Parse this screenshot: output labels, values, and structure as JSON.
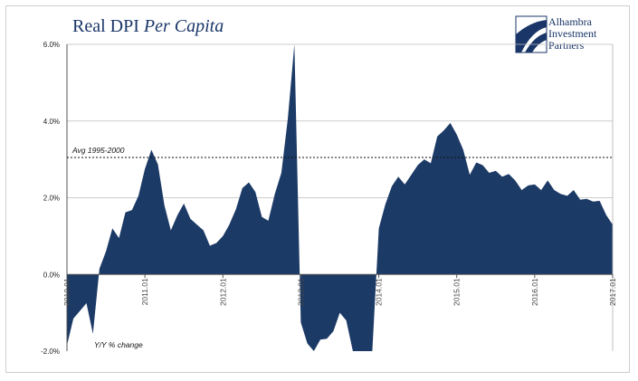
{
  "header": {
    "title_plain": "Real DPI ",
    "title_italic": "Per Capita"
  },
  "logo": {
    "line1": "Alhambra",
    "line2": "Investment",
    "line3": "Partners",
    "color": "#1a3668"
  },
  "chart_data": {
    "type": "area",
    "title": "Real DPI Per Capita",
    "ylabel": "Y/Y % change",
    "ylim": [
      -2,
      6
    ],
    "xlim": [
      2010.0,
      2017.0
    ],
    "y_tick_labels": [
      "-2.0%",
      "0.0%",
      "2.0%",
      "4.0%",
      "6.0%"
    ],
    "y_ticks": [
      -2,
      0,
      2,
      4,
      6
    ],
    "x_tick_labels": [
      "2010.01",
      "2011.01",
      "2012.01",
      "2013.01",
      "2014.01",
      "2015.01",
      "2016.01",
      "2017.01"
    ],
    "x_ticks": [
      2010.0,
      2011.0,
      2012.0,
      2013.0,
      2014.0,
      2015.0,
      2016.0,
      2017.0
    ],
    "grid": true,
    "fill_color": "#1c3a66",
    "reference_line": {
      "label": "Avg 1995-2000",
      "value": 3.05
    },
    "series": [
      {
        "values": [
          [
            2010.0,
            -1.85
          ],
          [
            2010.083,
            -1.15
          ],
          [
            2010.167,
            -0.95
          ],
          [
            2010.25,
            -0.75
          ],
          [
            2010.333,
            -1.55
          ],
          [
            2010.417,
            0.15
          ],
          [
            2010.5,
            0.6
          ],
          [
            2010.583,
            1.2
          ],
          [
            2010.667,
            0.95
          ],
          [
            2010.75,
            1.62
          ],
          [
            2010.833,
            1.68
          ],
          [
            2010.917,
            2.05
          ],
          [
            2011.0,
            2.75
          ],
          [
            2011.083,
            3.25
          ],
          [
            2011.167,
            2.87
          ],
          [
            2011.25,
            1.8
          ],
          [
            2011.333,
            1.15
          ],
          [
            2011.417,
            1.55
          ],
          [
            2011.5,
            1.85
          ],
          [
            2011.583,
            1.45
          ],
          [
            2011.667,
            1.3
          ],
          [
            2011.75,
            1.15
          ],
          [
            2011.833,
            0.75
          ],
          [
            2011.917,
            0.82
          ],
          [
            2012.0,
            1.0
          ],
          [
            2012.083,
            1.3
          ],
          [
            2012.167,
            1.7
          ],
          [
            2012.25,
            2.25
          ],
          [
            2012.333,
            2.4
          ],
          [
            2012.417,
            2.15
          ],
          [
            2012.5,
            1.5
          ],
          [
            2012.583,
            1.4
          ],
          [
            2012.667,
            2.1
          ],
          [
            2012.75,
            2.65
          ],
          [
            2012.833,
            4.05
          ],
          [
            2012.917,
            6.0
          ],
          [
            2013.0,
            -1.25
          ],
          [
            2013.083,
            -1.8
          ],
          [
            2013.167,
            -2.0
          ],
          [
            2013.25,
            -1.7
          ],
          [
            2013.333,
            -1.68
          ],
          [
            2013.417,
            -1.48
          ],
          [
            2013.5,
            -1.0
          ],
          [
            2013.583,
            -1.2
          ],
          [
            2013.667,
            -2.0
          ],
          [
            2013.75,
            -2.0
          ],
          [
            2013.833,
            -2.0
          ],
          [
            2013.917,
            -2.0
          ],
          [
            2014.0,
            1.2
          ],
          [
            2014.083,
            1.82
          ],
          [
            2014.167,
            2.3
          ],
          [
            2014.25,
            2.55
          ],
          [
            2014.333,
            2.35
          ],
          [
            2014.417,
            2.6
          ],
          [
            2014.5,
            2.85
          ],
          [
            2014.583,
            3.0
          ],
          [
            2014.667,
            2.9
          ],
          [
            2014.75,
            3.6
          ],
          [
            2014.833,
            3.75
          ],
          [
            2014.917,
            3.95
          ],
          [
            2015.0,
            3.65
          ],
          [
            2015.083,
            3.25
          ],
          [
            2015.167,
            2.6
          ],
          [
            2015.25,
            2.92
          ],
          [
            2015.333,
            2.85
          ],
          [
            2015.417,
            2.65
          ],
          [
            2015.5,
            2.7
          ],
          [
            2015.583,
            2.55
          ],
          [
            2015.667,
            2.62
          ],
          [
            2015.75,
            2.45
          ],
          [
            2015.833,
            2.2
          ],
          [
            2015.917,
            2.32
          ],
          [
            2016.0,
            2.35
          ],
          [
            2016.083,
            2.2
          ],
          [
            2016.167,
            2.45
          ],
          [
            2016.25,
            2.2
          ],
          [
            2016.333,
            2.1
          ],
          [
            2016.417,
            2.05
          ],
          [
            2016.5,
            2.2
          ],
          [
            2016.583,
            1.95
          ],
          [
            2016.667,
            1.97
          ],
          [
            2016.75,
            1.9
          ],
          [
            2016.833,
            1.92
          ],
          [
            2016.917,
            1.55
          ],
          [
            2017.0,
            1.3
          ]
        ]
      }
    ]
  }
}
